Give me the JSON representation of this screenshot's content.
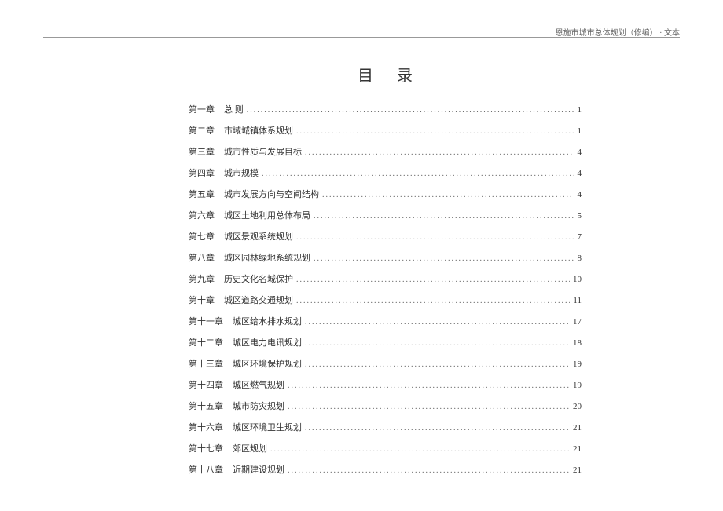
{
  "header": {
    "right_text": "恩施市城市总体规划（修编）  · 文本"
  },
  "title": "目录",
  "toc": [
    {
      "chapter": "第一章",
      "title": "总  则",
      "page": "1",
      "indent": 1
    },
    {
      "chapter": "第二章",
      "title": "市域城镇体系规划",
      "page": "1",
      "indent": 1
    },
    {
      "chapter": "第三章",
      "title": "城市性质与发展目标",
      "page": "4",
      "indent": 1
    },
    {
      "chapter": "第四章",
      "title": "城市规模",
      "page": "4",
      "indent": 1
    },
    {
      "chapter": "第五章",
      "title": "城市发展方向与空间结构",
      "page": "4",
      "indent": 1
    },
    {
      "chapter": "第六章",
      "title": "城区土地利用总体布局",
      "page": "5",
      "indent": 1
    },
    {
      "chapter": "第七章",
      "title": "城区景观系统规划",
      "page": "7",
      "indent": 1
    },
    {
      "chapter": "第八章",
      "title": "城区园林绿地系统规划",
      "page": "8",
      "indent": 1
    },
    {
      "chapter": "第九章",
      "title": "历史文化名城保护",
      "page": "10",
      "indent": 1
    },
    {
      "chapter": "第十章",
      "title": "城区道路交通规划",
      "page": "11",
      "indent": 1
    },
    {
      "chapter": "第十一章",
      "title": "城区给水排水规划",
      "page": "17",
      "indent": 2
    },
    {
      "chapter": "第十二章",
      "title": "城区电力电讯规划",
      "page": "18",
      "indent": 2
    },
    {
      "chapter": "第十三章",
      "title": "城区环境保护规划",
      "page": "19",
      "indent": 2
    },
    {
      "chapter": "第十四章",
      "title": "城区燃气规划",
      "page": "19",
      "indent": 2
    },
    {
      "chapter": "第十五章",
      "title": "城市防灾规划",
      "page": "20",
      "indent": 2
    },
    {
      "chapter": "第十六章",
      "title": "城区环境卫生规划",
      "page": "21",
      "indent": 2
    },
    {
      "chapter": "第十七章",
      "title": "郊区规划",
      "page": "21",
      "indent": 2
    },
    {
      "chapter": "第十八章",
      "title": "近期建设规划",
      "page": "21",
      "indent": 2
    }
  ]
}
